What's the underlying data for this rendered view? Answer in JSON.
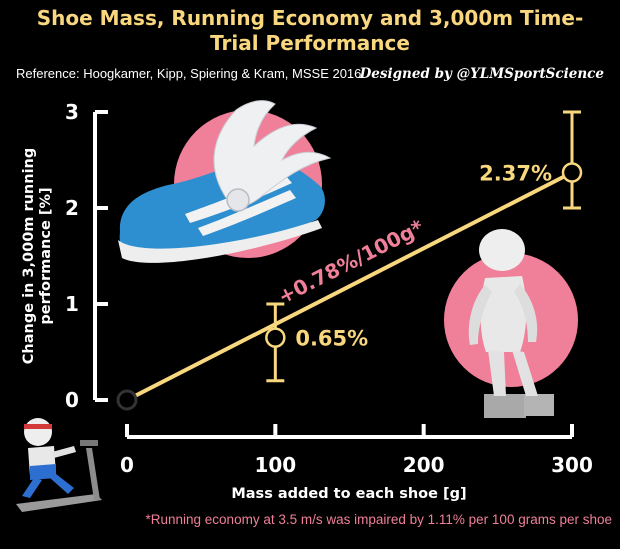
{
  "header": {
    "title_line1": "Shoe Mass, Running Economy and 3,000m Time-",
    "title_line2": "Trial Performance",
    "reference": "Reference: Hoogkamer, Kipp, Spiering & Kram, MSSE 2016",
    "designer": "Designed by @YLMSportScience"
  },
  "footnote": "*Running economy at 3.5 m/s was impaired by 1.11% per 100 grams per shoe",
  "colors": {
    "background": "#000000",
    "accent_yellow": "#f9d77e",
    "accent_pink": "#f07f99",
    "axis": "#ffffff"
  },
  "chart_data": {
    "type": "scatter",
    "xlabel": "Mass added to each shoe [g]",
    "ylabel_line1": "Change in 3,000m running",
    "ylabel_line2": "performance [%]",
    "xlim": [
      0,
      300
    ],
    "ylim": [
      0,
      3
    ],
    "x_ticks": [
      "0",
      "100",
      "200",
      "300"
    ],
    "y_ticks": [
      "0",
      "1",
      "2",
      "3"
    ],
    "points": [
      {
        "x": 0,
        "y": 0,
        "label": "",
        "err_low": 0,
        "err_high": 0
      },
      {
        "x": 100,
        "y": 0.65,
        "label": "0.65%",
        "err_low": 0.2,
        "err_high": 1.0
      },
      {
        "x": 300,
        "y": 2.37,
        "label": "2.37%",
        "err_low": 2.0,
        "err_high": 3.0
      }
    ],
    "trend": {
      "x": [
        0,
        300
      ],
      "y": [
        0,
        2.37
      ],
      "label": "+0.78%/100g*"
    },
    "illustrations": [
      "winged-shoe",
      "standing-figure-on-weights",
      "treadmill-runner"
    ]
  }
}
